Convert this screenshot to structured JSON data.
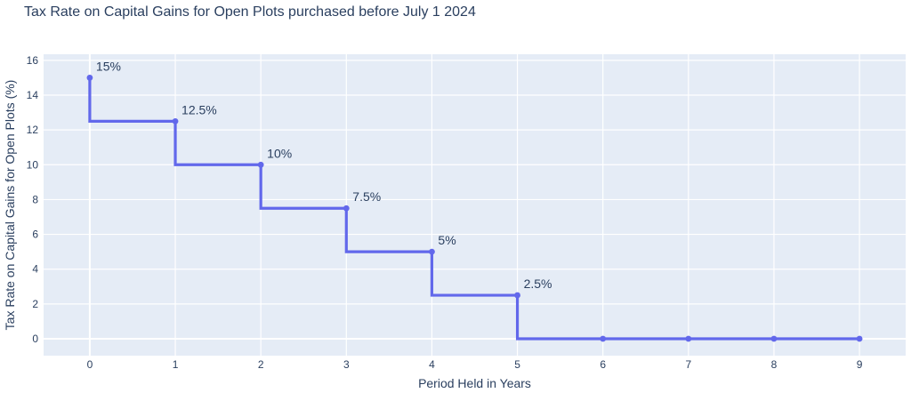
{
  "chart_data": {
    "type": "line",
    "subtype": "step",
    "step_shape": "vh",
    "title": "Tax Rate on Capital Gains for Open Plots purchased before July 1 2024",
    "xlabel": "Period Held in Years",
    "ylabel": "Tax Rate on Capital Gains for Open Plots (%)",
    "x": [
      0,
      1,
      2,
      3,
      4,
      5,
      6,
      7,
      8,
      9
    ],
    "y": [
      15,
      12.5,
      10,
      7.5,
      5,
      2.5,
      0,
      0,
      0,
      0
    ],
    "annotations": [
      {
        "x": 0,
        "y": 15,
        "text": "15%"
      },
      {
        "x": 1,
        "y": 12.5,
        "text": "12.5%"
      },
      {
        "x": 2,
        "y": 10,
        "text": "10%"
      },
      {
        "x": 3,
        "y": 7.5,
        "text": "7.5%"
      },
      {
        "x": 4,
        "y": 5,
        "text": "5%"
      },
      {
        "x": 5,
        "y": 2.5,
        "text": "2.5%"
      }
    ],
    "xticks": [
      0,
      1,
      2,
      3,
      4,
      5,
      6,
      7,
      8,
      9
    ],
    "yticks": [
      0,
      2,
      4,
      6,
      8,
      10,
      12,
      14,
      16
    ],
    "x_range": [
      -0.54,
      9.54
    ],
    "y_range": [
      -0.97,
      16.35
    ],
    "grid": true,
    "legend": "none",
    "colors": {
      "line": "#6268EB",
      "marker": "#6268EB",
      "plot_background": "#E5ECF6",
      "grid_line": "#FFFFFF",
      "text": "#2A3F5F"
    }
  }
}
